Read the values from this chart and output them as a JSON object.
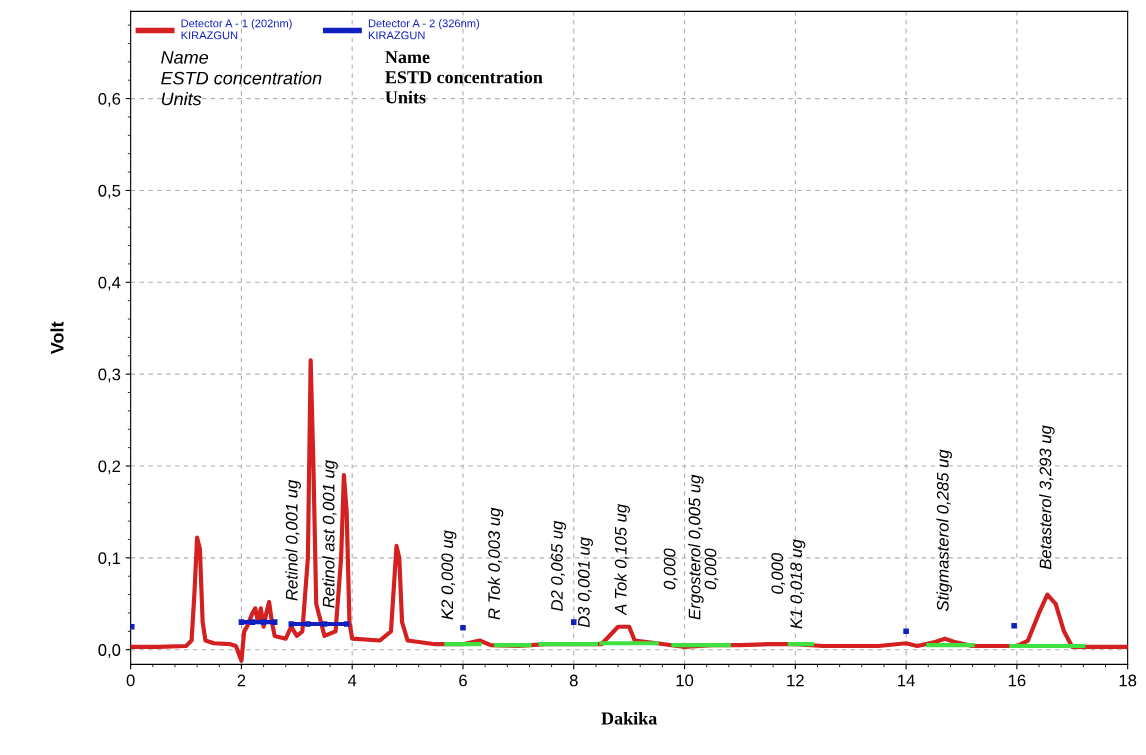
{
  "chart_data": {
    "type": "line",
    "xlabel": "Dakika",
    "ylabel": "Volt",
    "xlim": [
      0,
      18
    ],
    "xticks": [
      0,
      2,
      4,
      6,
      8,
      10,
      12,
      14,
      16,
      18
    ],
    "ylim": [
      -0.016,
      0.695
    ],
    "yticks": [
      {
        "value": 0,
        "label": "0,0"
      },
      {
        "value": 0.1,
        "label": "0,1"
      },
      {
        "value": 0.2,
        "label": "0,2"
      },
      {
        "value": 0.3,
        "label": "0,3"
      },
      {
        "value": 0.4,
        "label": "0,4"
      },
      {
        "value": 0.5,
        "label": "0,5"
      },
      {
        "value": 0.6,
        "label": "0,6"
      }
    ],
    "grid": true,
    "legend": "top left",
    "series": [
      {
        "name": "Detector A - 1 (202nm)\nKIRAZGUN",
        "color": "#d42020",
        "x": [
          0,
          0.5,
          1.0,
          1.1,
          1.15,
          1.2,
          1.25,
          1.3,
          1.35,
          1.5,
          1.8,
          1.9,
          2.0,
          2.05,
          2.1,
          2.2,
          2.25,
          2.3,
          2.35,
          2.4,
          2.45,
          2.5,
          2.55,
          2.6,
          2.8,
          2.9,
          3.0,
          3.1,
          3.2,
          3.25,
          3.3,
          3.35,
          3.5,
          3.7,
          3.8,
          3.85,
          3.9,
          3.95,
          4.0,
          4.5,
          4.7,
          4.8,
          4.85,
          4.9,
          5.0,
          5.5,
          6.0,
          6.3,
          6.5,
          7.0,
          7.5,
          8.0,
          8.5,
          8.8,
          9.0,
          9.1,
          9.5,
          10.0,
          10.5,
          11.0,
          11.5,
          12.0,
          12.5,
          13.0,
          13.5,
          14.0,
          14.2,
          14.5,
          14.7,
          14.9,
          15.2,
          15.7,
          16.0,
          16.2,
          16.4,
          16.55,
          16.7,
          16.85,
          17.0,
          17.5,
          18.0
        ],
        "values": [
          0.003,
          0.003,
          0.004,
          0.01,
          0.06,
          0.122,
          0.11,
          0.03,
          0.01,
          0.007,
          0.006,
          0.004,
          -0.012,
          0.02,
          0.025,
          0.04,
          0.045,
          0.03,
          0.045,
          0.025,
          0.04,
          0.052,
          0.03,
          0.015,
          0.012,
          0.025,
          0.015,
          0.02,
          0.1,
          0.315,
          0.2,
          0.05,
          0.015,
          0.02,
          0.1,
          0.19,
          0.15,
          0.03,
          0.012,
          0.01,
          0.02,
          0.113,
          0.1,
          0.03,
          0.01,
          0.006,
          0.006,
          0.01,
          0.005,
          0.004,
          0.006,
          0.006,
          0.006,
          0.025,
          0.025,
          0.01,
          0.007,
          0.003,
          0.005,
          0.005,
          0.006,
          0.006,
          0.004,
          0.004,
          0.004,
          0.007,
          0.004,
          0.008,
          0.012,
          0.008,
          0.004,
          0.004,
          0.004,
          0.01,
          0.04,
          0.06,
          0.05,
          0.02,
          0.003,
          0.003,
          0.003
        ]
      },
      {
        "name": "Detector A - 2 (326nm)\nKIRAZGUN",
        "color": "#1020c0",
        "marker": "square",
        "x": [
          2.0,
          2.2,
          2.4,
          2.6
        ],
        "values": [
          0.03,
          0.03,
          0.03,
          0.03
        ]
      },
      {
        "color": "#1020c0",
        "marker": "square",
        "x": [
          2.9,
          3.2,
          3.5,
          3.9
        ],
        "values": [
          0.028,
          0.028,
          0.028,
          0.028
        ]
      },
      {
        "color": "#1020c0",
        "marker": "square",
        "x": [
          0.02
        ],
        "values": [
          0.025
        ]
      },
      {
        "color": "#1020c0",
        "marker": "square",
        "x": [
          6.0
        ],
        "values": [
          0.024
        ]
      },
      {
        "color": "#1020c0",
        "marker": "square",
        "x": [
          8.0
        ],
        "values": [
          0.03
        ]
      },
      {
        "color": "#1020c0",
        "marker": "square",
        "x": [
          14.0
        ],
        "values": [
          0.02
        ]
      },
      {
        "color": "#1020c0",
        "marker": "square",
        "x": [
          15.95
        ],
        "values": [
          0.026
        ]
      },
      {
        "color": "#40e040",
        "x": [
          5.7,
          6.3
        ],
        "values": [
          0.006,
          0.006
        ]
      },
      {
        "color": "#40e040",
        "x": [
          6.6,
          7.2
        ],
        "values": [
          0.005,
          0.005
        ]
      },
      {
        "color": "#40e040",
        "x": [
          7.4,
          8.4
        ],
        "values": [
          0.006,
          0.006
        ]
      },
      {
        "color": "#40e040",
        "x": [
          8.5,
          9.5
        ],
        "values": [
          0.007,
          0.007
        ]
      },
      {
        "color": "#40e040",
        "x": [
          9.8,
          10.8
        ],
        "values": [
          0.005,
          0.005
        ]
      },
      {
        "color": "#40e040",
        "x": [
          11.9,
          12.3
        ],
        "values": [
          0.006,
          0.006
        ]
      },
      {
        "color": "#40e040",
        "x": [
          14.4,
          15.2
        ],
        "values": [
          0.005,
          0.005
        ]
      },
      {
        "color": "#40e040",
        "x": [
          15.9,
          17.2
        ],
        "values": [
          0.004,
          0.004
        ]
      }
    ],
    "annotations": [
      "Name\nESTD concentration\nUnits",
      "Name\nESTD concentration\nUnits",
      "Retinol 0,001 ug",
      "Retinol ast 0,001 ug",
      "K2 0,000 ug",
      "R Tok 0,003 ug",
      "D2 0,065 ug",
      "D3 0,001 ug",
      "A Tok 0,105 ug",
      "0,000",
      "Ergosterol 0,005 ug",
      "0,000",
      "0,000",
      "K1 0,018 ug",
      "Stigmasterol 0,285 ug",
      "Betasterol 3,293 ug"
    ]
  }
}
